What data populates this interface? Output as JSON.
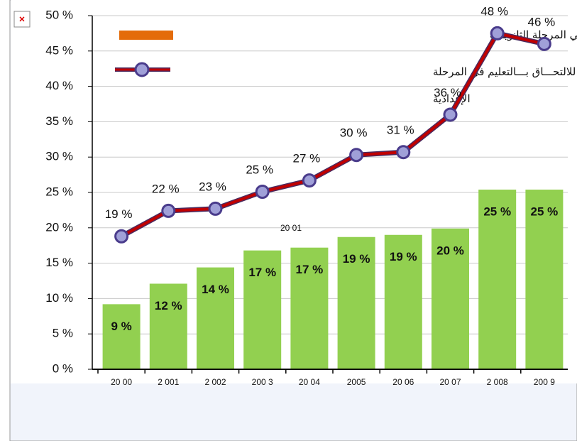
{
  "chart_data": {
    "type": "bar+line",
    "categories": [
      "20 00",
      "2 001",
      "2 002",
      "200 3",
      "20 04",
      "2005",
      "20 06",
      "20 07",
      "2 008",
      "200 9"
    ],
    "series": [
      {
        "name": "المعدل الصـــافي للالتحـــاق بـــالتعليم في المرحلة الثانويـــة",
        "type": "bar",
        "color": "#92d050",
        "legend_color": "#e46c0a",
        "values": [
          9.2,
          12.1,
          14.4,
          16.8,
          17.2,
          18.7,
          19.0,
          19.9,
          25.4,
          25.4
        ],
        "value_labels": [
          "9 %",
          "12 %",
          "14 %",
          "17 %",
          "17 %",
          "19 %",
          "19 %",
          "20 %",
          "25 %",
          "25 %"
        ]
      },
      {
        "name": "المعدل الصـــافي للالتحـــاق بـــالتعليم في المرحلة الإعدادية",
        "type": "line",
        "color": "#c00000",
        "values": [
          18.8,
          22.4,
          22.7,
          25.1,
          26.7,
          30.3,
          30.7,
          36.0,
          47.5,
          46.0
        ],
        "value_labels": [
          "19 %",
          "22 %",
          "23 %",
          "25 %",
          "27 %",
          "30 %",
          "31 %",
          "36 %",
          "48 %",
          "46 %"
        ]
      }
    ],
    "annotation": "20 01",
    "ylim": [
      0,
      50
    ],
    "yticks": [
      {
        "value": 0,
        "label": "0 %"
      },
      {
        "value": 5,
        "label": "5 %"
      },
      {
        "value": 10,
        "label": "10 %"
      },
      {
        "value": 15,
        "label": "15 %"
      },
      {
        "value": 20,
        "label": "20 %"
      },
      {
        "value": 25,
        "label": "25 %"
      },
      {
        "value": 30,
        "label": "30 %"
      },
      {
        "value": 35,
        "label": "35 %"
      },
      {
        "value": 40,
        "label": "40 %"
      },
      {
        "value": 45,
        "label": "45 %"
      },
      {
        "value": 50,
        "label": "50 %"
      }
    ],
    "grid": true
  }
}
